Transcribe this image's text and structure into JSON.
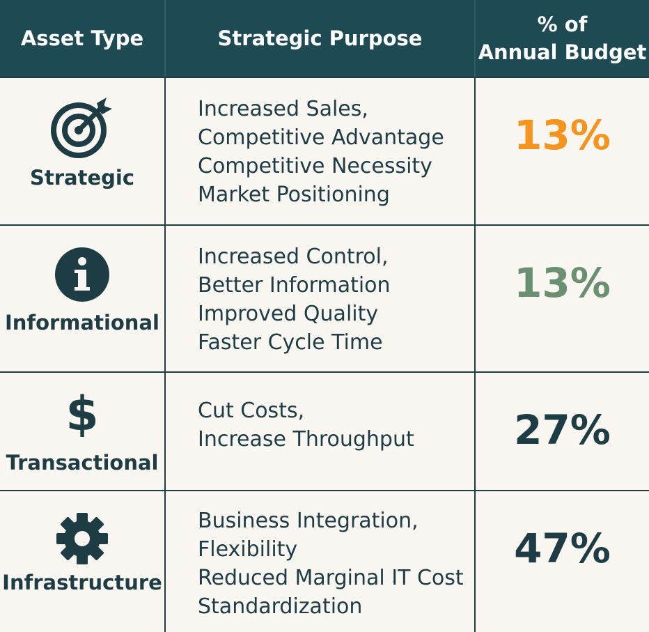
{
  "header": {
    "asset_type": "Asset Type",
    "strategic_purpose": "Strategic Purpose",
    "budget_line1": "% of",
    "budget_line2": "Annual Budget"
  },
  "colors": {
    "header_bg": "#1e4a53",
    "text_dark": "#1d3c44",
    "pct_orange": "#f7941d",
    "pct_green": "#6b8f71",
    "pct_dark": "#1d3c44"
  },
  "rows": [
    {
      "asset": "Strategic",
      "icon": "target-icon",
      "purpose": [
        "Increased Sales,",
        "Competitive Advantage",
        "Competitive Necessity",
        "Market Positioning"
      ],
      "percent": "13%"
    },
    {
      "asset": "Informational",
      "icon": "info-icon",
      "purpose": [
        "Increased Control,",
        "Better Information",
        "Improved Quality",
        "Faster Cycle Time"
      ],
      "percent": "13%"
    },
    {
      "asset": "Transactional",
      "icon": "dollar-icon",
      "purpose": [
        "Cut Costs,",
        "Increase Throughput"
      ],
      "percent": "27%"
    },
    {
      "asset": "Infrastructure",
      "icon": "gear-icon",
      "purpose": [
        "Business Integration,",
        "Flexibility",
        "Reduced Marginal IT Cost",
        "Standardization"
      ],
      "percent": "47%"
    }
  ]
}
